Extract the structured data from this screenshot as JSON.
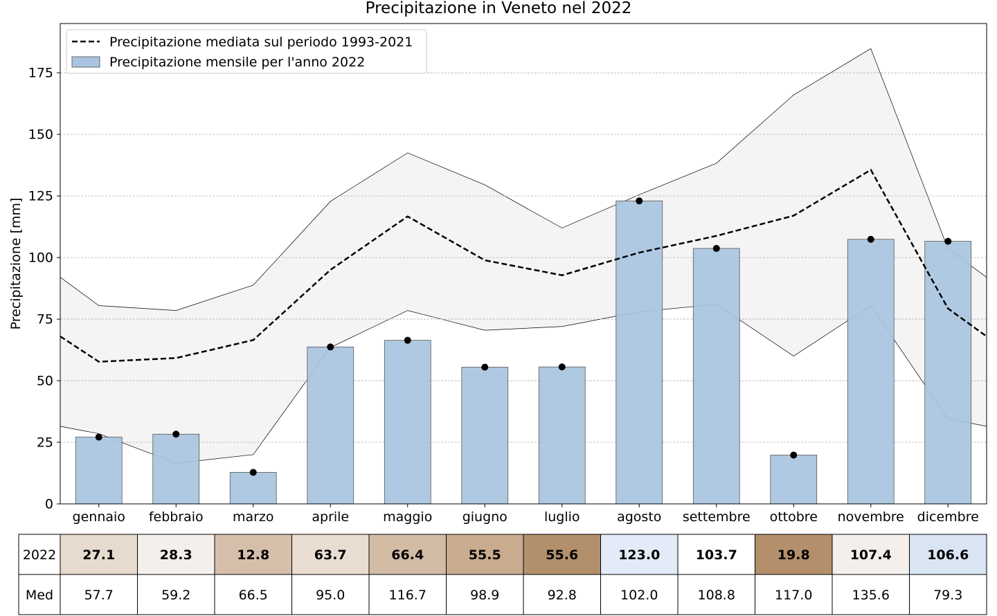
{
  "chart_data": {
    "type": "bar",
    "title": "Precipitazione in Veneto nel 2022",
    "xlabel": "",
    "ylabel": "Precipitazione [mm]",
    "ylim": [
      0,
      195
    ],
    "yticks": [
      0,
      25,
      50,
      75,
      100,
      125,
      150,
      175
    ],
    "grid": "horizontal dashed",
    "legend_position": "top-left",
    "categories": [
      "gennaio",
      "febbraio",
      "marzo",
      "aprile",
      "maggio",
      "giugno",
      "luglio",
      "agosto",
      "settembre",
      "ottobre",
      "novembre",
      "dicembre"
    ],
    "series": [
      {
        "name": "Precipitazione mensile per l'anno 2022",
        "type": "bar",
        "color": "#a9c4e0",
        "values": [
          27.1,
          28.3,
          12.8,
          63.7,
          66.4,
          55.5,
          55.6,
          123.0,
          103.7,
          19.8,
          107.4,
          106.6
        ]
      },
      {
        "name": "Precipitazione mediata sul periodo 1993-2021",
        "type": "line",
        "style": "dashed",
        "color": "#000000",
        "values": [
          57.7,
          59.2,
          66.5,
          95.0,
          116.7,
          98.9,
          92.8,
          102.0,
          108.8,
          117.0,
          135.6,
          79.3
        ],
        "edge_left": 68,
        "edge_right": 68
      }
    ],
    "band": {
      "fill": "#f4f4f4",
      "upper": [
        80.5,
        78.5,
        88.8,
        122.8,
        142.5,
        129.5,
        112.0,
        125.5,
        138.3,
        166.0,
        184.8,
        103.5
      ],
      "lower": [
        28.5,
        16.5,
        20.0,
        63.5,
        78.5,
        70.5,
        72.0,
        78.0,
        81.0,
        60.0,
        80.5,
        34.5
      ],
      "upper_edge_left": 92,
      "upper_edge_right": 92,
      "lower_edge_left": 31.5,
      "lower_edge_right": 31.5
    },
    "table": {
      "rows": [
        {
          "label": "2022",
          "bold": true,
          "cells": [
            "27.1",
            "28.3",
            "12.8",
            "63.7",
            "66.4",
            "55.5",
            "55.6",
            "123.0",
            "103.7",
            "19.8",
            "107.4",
            "106.6"
          ],
          "colors": [
            "#e7dbd0",
            "#f4efeb",
            "#d5bfab",
            "#e9ddd2",
            "#d3bca6",
            "#c9ab8f",
            "#b3906c",
            "#e2ebf7",
            "#ffffff",
            "#b38f6b",
            "#f4efea",
            "#d9e5f3"
          ]
        },
        {
          "label": "Med",
          "bold": false,
          "cells": [
            "57.7",
            "59.2",
            "66.5",
            "95.0",
            "116.7",
            "98.9",
            "92.8",
            "102.0",
            "108.8",
            "117.0",
            "135.6",
            "79.3"
          ]
        }
      ]
    }
  }
}
